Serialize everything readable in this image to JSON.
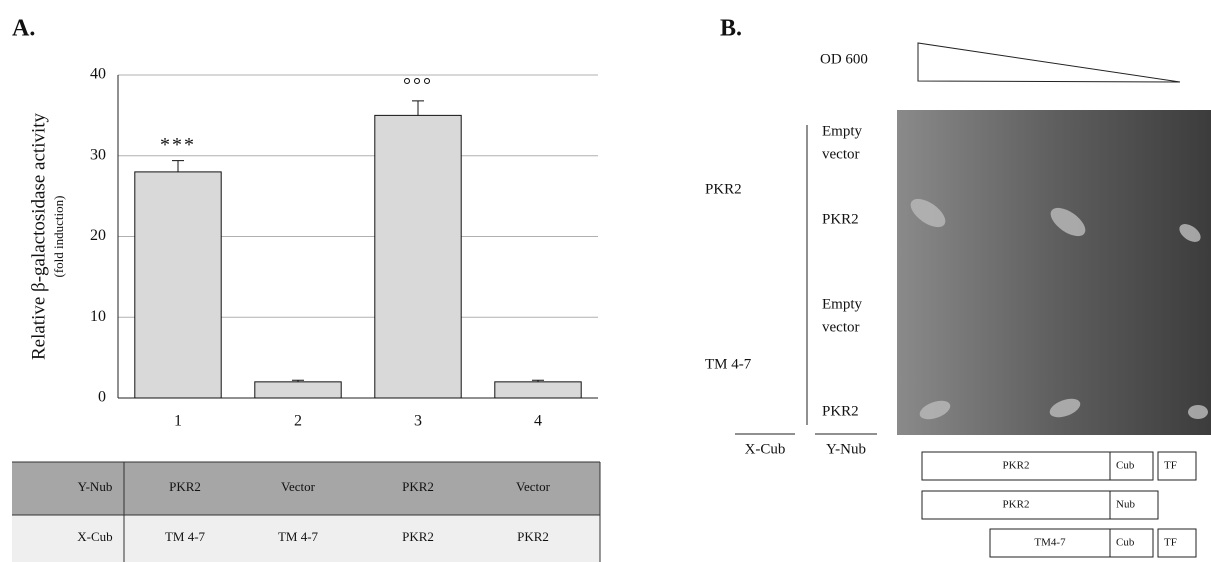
{
  "panel_a_label": "A.",
  "chart_data": {
    "type": "bar",
    "ylabel": "Relative β-galactosidase activity",
    "ylabel_sub": "(fold induction)",
    "categories": [
      "1",
      "2",
      "3",
      "4"
    ],
    "values": [
      28,
      2,
      35,
      2
    ],
    "errors": [
      1.4,
      0.2,
      1.8,
      0.2
    ],
    "annotations": [
      "***",
      null,
      "°°°",
      null
    ],
    "color": "#d9d9d9",
    "ylim": [
      0,
      40
    ],
    "yticks": [
      0,
      10,
      20,
      30,
      40
    ],
    "grid": true
  },
  "table": {
    "rows": [
      [
        "Y-Nub",
        "PKR2",
        "Vector",
        "PKR2",
        "Vector"
      ],
      [
        "X-Cub",
        "TM 4-7",
        "TM 4-7",
        "PKR2",
        "PKR2"
      ]
    ]
  },
  "panel_b": {
    "label": "B.",
    "od": "OD 600",
    "bait_labels": [
      "PKR2",
      "TM  4-7"
    ],
    "prey_labels": [
      {
        "lines": [
          "Empty",
          "vector"
        ]
      },
      {
        "lines": [
          "PKR2"
        ]
      },
      {
        "lines": [
          "Empty",
          "vector"
        ]
      },
      {
        "lines": [
          "PKR2"
        ]
      }
    ],
    "x_header": "X-Cub",
    "y_header": "Y-Nub",
    "constructs": [
      [
        "PKR2",
        "Cub",
        "TF"
      ],
      [
        "PKR2",
        "Nub"
      ],
      [
        "TM4-7",
        "Cub",
        "TF"
      ]
    ]
  }
}
